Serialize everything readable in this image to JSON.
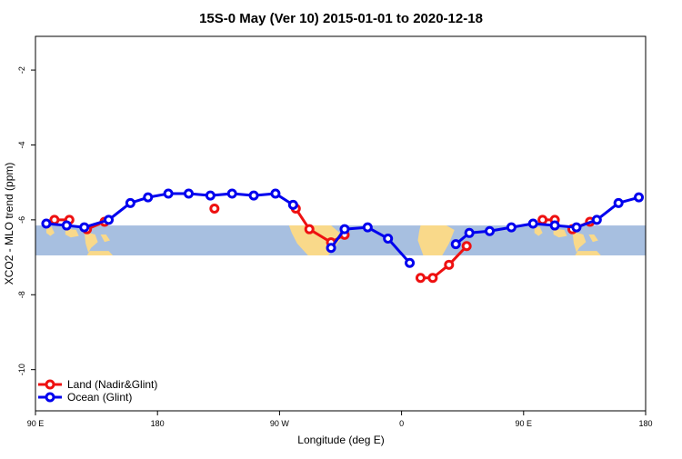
{
  "chart_data": {
    "type": "line",
    "title": "15S-0 May (Ver 10)   2015-01-01 to 2020-12-18",
    "xlabel": "Longitude (deg E)",
    "ylabel": "XCO2 - MLO trend (ppm)",
    "xlim": [
      90,
      540
    ],
    "ylim": [
      -11.1,
      -1.1
    ],
    "x_ticks": [
      {
        "value": 90,
        "label": "90 E"
      },
      {
        "value": 180,
        "label": "180"
      },
      {
        "value": 270,
        "label": "90 W"
      },
      {
        "value": 360,
        "label": "0"
      },
      {
        "value": 450,
        "label": "90 E"
      },
      {
        "value": 540,
        "label": "180"
      }
    ],
    "y_ticks": [
      {
        "value": -2,
        "label": "-2"
      },
      {
        "value": -4,
        "label": "-4"
      },
      {
        "value": -6,
        "label": "-6"
      },
      {
        "value": -8,
        "label": "-8"
      },
      {
        "value": -10,
        "label": "-10"
      }
    ],
    "band": {
      "y_top": -6.15,
      "y_bottom": -6.95,
      "color": "#a7bfe0",
      "land_color": "#f9d98a"
    },
    "series": [
      {
        "name": "Land (Nadir&Glint)",
        "color": "#ee1111",
        "segments": [
          [
            [
              104,
              -6.0
            ],
            [
              115,
              -6.0
            ]
          ],
          [
            [
              128,
              -6.25
            ],
            [
              141,
              -6.05
            ]
          ],
          [
            [
              222,
              -5.7
            ]
          ],
          [
            [
              282,
              -5.7
            ],
            [
              292,
              -6.25
            ],
            [
              308,
              -6.6
            ],
            [
              318,
              -6.4
            ]
          ],
          [
            [
              374,
              -7.55
            ],
            [
              383,
              -7.55
            ],
            [
              395,
              -7.2
            ],
            [
              408,
              -6.7
            ]
          ],
          [
            [
              464,
              -6.0
            ],
            [
              473,
              -6.0
            ]
          ],
          [
            [
              486,
              -6.25
            ],
            [
              499,
              -6.05
            ]
          ]
        ]
      },
      {
        "name": "Ocean (Glint)",
        "color": "#0000ee",
        "segments": [
          [
            [
              98,
              -6.1
            ],
            [
              113,
              -6.15
            ],
            [
              126,
              -6.2
            ],
            [
              144,
              -6.0
            ],
            [
              160,
              -5.55
            ],
            [
              173,
              -5.4
            ],
            [
              188,
              -5.3
            ],
            [
              203,
              -5.3
            ],
            [
              219,
              -5.35
            ],
            [
              235,
              -5.3
            ],
            [
              251,
              -5.35
            ],
            [
              267,
              -5.3
            ],
            [
              280,
              -5.6
            ]
          ],
          [
            [
              308,
              -6.75
            ],
            [
              318,
              -6.25
            ],
            [
              335,
              -6.2
            ],
            [
              350,
              -6.5
            ],
            [
              366,
              -7.15
            ]
          ],
          [
            [
              400,
              -6.65
            ],
            [
              410,
              -6.35
            ],
            [
              425,
              -6.3
            ],
            [
              441,
              -6.2
            ],
            [
              457,
              -6.1
            ],
            [
              473,
              -6.15
            ],
            [
              489,
              -6.2
            ],
            [
              504,
              -6.0
            ],
            [
              520,
              -5.55
            ],
            [
              535,
              -5.4
            ]
          ]
        ]
      }
    ],
    "legend": {
      "position": "bottom-left"
    }
  }
}
